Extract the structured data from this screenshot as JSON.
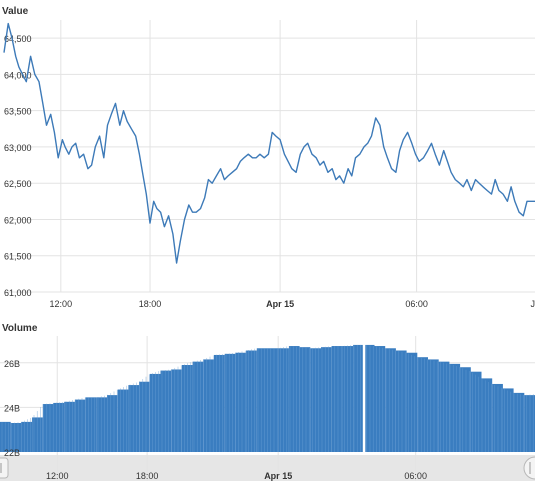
{
  "colors": {
    "line": "#3d7ab8",
    "bar": "#3a7dc0",
    "grid": "#e3e3e3",
    "navigator_bg": "#e6e6e6",
    "selection_marker": "#ffffff"
  },
  "chart_data": [
    {
      "type": "line",
      "title": "Value",
      "yticks": [
        "61,000",
        "61,500",
        "62,000",
        "62,500",
        "63,000",
        "63,500",
        "64,000",
        "64,500"
      ],
      "ylim": [
        61000,
        64750
      ],
      "xlim": [
        0,
        1000
      ],
      "xticks": [
        {
          "pos": 107,
          "label": "12:00",
          "bold": false
        },
        {
          "pos": 275,
          "label": "18:00",
          "bold": false
        },
        {
          "pos": 520,
          "label": "Apr 15",
          "bold": true
        },
        {
          "pos": 777,
          "label": "06:00",
          "bold": false
        },
        {
          "pos": 995,
          "label": "J",
          "bold": false
        }
      ],
      "grid": true,
      "series": [
        {
          "x": [
            0,
            8,
            15,
            22,
            28,
            35,
            42,
            50,
            58,
            66,
            73,
            80,
            88,
            95,
            102,
            110,
            115,
            122,
            128,
            135,
            142,
            150,
            158,
            165,
            172,
            180,
            188,
            195,
            202,
            210,
            218,
            225,
            232,
            240,
            248,
            255,
            262,
            268,
            275,
            282,
            288,
            295,
            302,
            310,
            318,
            325,
            332,
            340,
            348,
            355,
            362,
            370,
            378,
            385,
            392,
            400,
            408,
            415,
            422,
            430,
            438,
            445,
            452,
            460,
            468,
            475,
            482,
            490,
            498,
            505,
            512,
            520,
            528,
            535,
            542,
            550,
            558,
            565,
            572,
            580,
            588,
            595,
            602,
            610,
            618,
            625,
            632,
            640,
            648,
            655,
            662,
            670,
            678,
            685,
            692,
            700,
            708,
            715,
            722,
            730,
            738,
            745,
            752,
            760,
            768,
            775,
            782,
            790,
            798,
            805,
            812,
            820,
            828,
            835,
            842,
            850,
            858,
            865,
            872,
            880,
            888,
            895,
            902,
            910,
            918,
            925,
            932,
            940,
            948,
            955,
            962,
            970,
            978,
            985,
            992,
            1000
          ],
          "y": [
            64300,
            64700,
            64500,
            64250,
            64100,
            64000,
            63900,
            64250,
            64000,
            63900,
            63600,
            63300,
            63450,
            63200,
            62850,
            63100,
            63000,
            62900,
            63000,
            63050,
            62850,
            62900,
            62700,
            62750,
            63000,
            63150,
            62850,
            63300,
            63450,
            63600,
            63300,
            63500,
            63350,
            63250,
            63150,
            62900,
            62600,
            62350,
            61950,
            62250,
            62150,
            62100,
            61900,
            62050,
            61800,
            61400,
            61700,
            62000,
            62200,
            62100,
            62100,
            62150,
            62300,
            62550,
            62500,
            62600,
            62700,
            62550,
            62600,
            62650,
            62700,
            62800,
            62850,
            62900,
            62850,
            62850,
            62900,
            62850,
            62900,
            63200,
            63150,
            63100,
            62900,
            62800,
            62700,
            62650,
            62900,
            63000,
            63050,
            62900,
            62850,
            62750,
            62800,
            62650,
            62700,
            62550,
            62600,
            62500,
            62700,
            62600,
            62850,
            62900,
            63000,
            63050,
            63150,
            63400,
            63300,
            63000,
            62850,
            62700,
            62650,
            62950,
            63100,
            63200,
            63050,
            62900,
            62800,
            62850,
            62950,
            63050,
            62900,
            62750,
            62950,
            62800,
            62650,
            62550,
            62500,
            62450,
            62550,
            62400,
            62550,
            62500,
            62450,
            62400,
            62350,
            62550,
            62400,
            62350,
            62250,
            62450,
            62250,
            62100,
            62050,
            62250,
            62250,
            62250
          ]
        }
      ]
    },
    {
      "type": "bar",
      "title": "Volume",
      "yticks": [
        "22B",
        "24B",
        "26B"
      ],
      "ylim": [
        22000000000,
        27200000000
      ],
      "xlim": [
        0,
        1000
      ],
      "xticks": [
        {
          "pos": 107,
          "label": "12:00",
          "bold": false
        },
        {
          "pos": 275,
          "label": "18:00",
          "bold": false
        },
        {
          "pos": 520,
          "label": "Apr 15",
          "bold": true
        },
        {
          "pos": 777,
          "label": "06:00",
          "bold": false
        }
      ],
      "grid": true,
      "gap_at": 680,
      "series": [
        {
          "x": [
            0,
            20,
            40,
            60,
            80,
            100,
            120,
            140,
            160,
            180,
            200,
            220,
            240,
            260,
            280,
            300,
            320,
            340,
            360,
            380,
            400,
            420,
            440,
            460,
            480,
            500,
            520,
            540,
            560,
            580,
            600,
            620,
            640,
            660,
            680,
            700,
            720,
            740,
            760,
            780,
            800,
            820,
            840,
            860,
            880,
            900,
            920,
            940,
            960,
            980,
            1000
          ],
          "y": [
            23350000000,
            23300000000,
            23350000000,
            23550000000,
            24150000000,
            24200000000,
            24250000000,
            24350000000,
            24450000000,
            24450000000,
            24550000000,
            24800000000,
            25000000000,
            25150000000,
            25500000000,
            25650000000,
            25700000000,
            25900000000,
            26050000000,
            26150000000,
            26350000000,
            26400000000,
            26450000000,
            26550000000,
            26650000000,
            26650000000,
            26650000000,
            26750000000,
            26700000000,
            26650000000,
            26700000000,
            26750000000,
            26750000000,
            26800000000,
            26800000000,
            26750000000,
            26650000000,
            26550000000,
            26450000000,
            26250000000,
            26150000000,
            26050000000,
            25950000000,
            25800000000,
            25600000000,
            25300000000,
            25050000000,
            24850000000,
            24650000000,
            24550000000,
            24600000000
          ]
        }
      ]
    }
  ]
}
